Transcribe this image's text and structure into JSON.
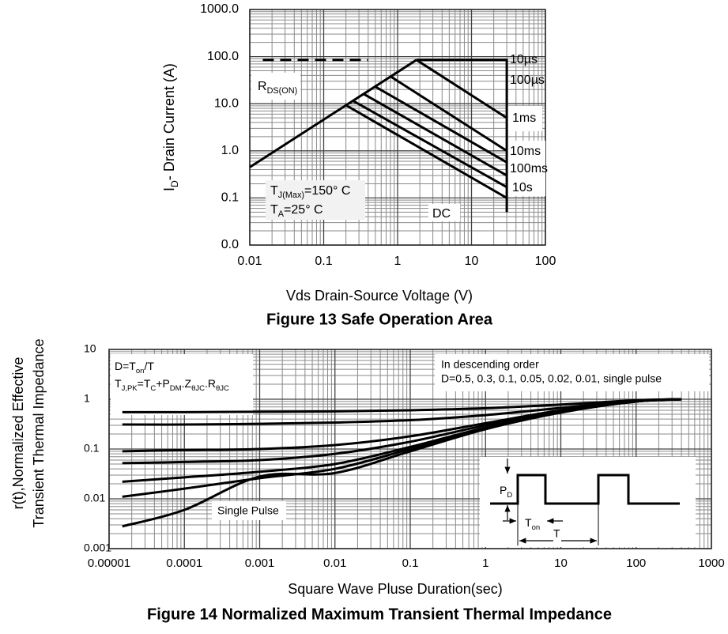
{
  "chart_data": [
    {
      "type": "line",
      "xscale": "log",
      "yscale": "log",
      "grid": true,
      "minor_grid": true,
      "title": "Figure 13 Safe Operation Area",
      "xlabel": "Vds Drain-Source Voltage (V)",
      "ylabel": [
        "I",
        "D",
        "- Drain Current (A)"
      ],
      "xlim": [
        0.01,
        100
      ],
      "ylim": [
        0.01,
        1000
      ],
      "xticks": [
        0.01,
        0.1,
        1,
        10,
        100
      ],
      "yticks": [
        {
          "value": 1000,
          "label": "1000.0"
        },
        {
          "value": 100,
          "label": "100.0"
        },
        {
          "value": 10,
          "label": "10.0"
        },
        {
          "value": 1,
          "label": "1.0"
        },
        0.1,
        {
          "value": 0.01,
          "label": "0.0"
        }
      ],
      "series": [
        {
          "color": "#000000",
          "x": [
            0.01,
            1.8
          ],
          "values": [
            0.45,
            85
          ]
        },
        {
          "color": "#000000",
          "dashed": true,
          "x": [
            0.015,
            0.4
          ],
          "values": [
            85,
            85
          ]
        },
        {
          "name": "10µs",
          "color": "#000000",
          "x": [
            1.8,
            30,
            30
          ],
          "values": [
            85,
            85,
            0.05
          ]
        },
        {
          "name": "100µs",
          "color": "#000000",
          "x": [
            1.8,
            30
          ],
          "values": [
            85,
            5
          ]
        },
        {
          "name": "1ms",
          "color": "#000000",
          "x": [
            0.8,
            30
          ],
          "values": [
            38,
            1.0
          ]
        },
        {
          "name": "10ms",
          "color": "#000000",
          "x": [
            0.5,
            30
          ],
          "values": [
            23,
            0.57
          ]
        },
        {
          "name": "100ms",
          "color": "#000000",
          "x": [
            0.35,
            30
          ],
          "values": [
            16,
            0.3
          ]
        },
        {
          "name": "10s",
          "color": "#000000",
          "x": [
            0.25,
            30
          ],
          "values": [
            11.5,
            0.17
          ]
        },
        {
          "name": "DC",
          "color": "#000000",
          "x": [
            0.2,
            30
          ],
          "values": [
            9.3,
            0.1
          ]
        }
      ],
      "annotations": [
        [
          "R",
          "DS(ON)"
        ],
        [
          "T",
          "J(Max)",
          "=150° C"
        ],
        [
          "T",
          "A",
          "=25° C"
        ]
      ]
    },
    {
      "type": "line",
      "xscale": "log",
      "yscale": "log",
      "grid": true,
      "minor_grid": true,
      "smooth": true,
      "title": "Figure 14 Normalized Maximum Transient Thermal Impedance",
      "xlabel": "Square Wave Pluse Duration(sec)",
      "ylabel_lines": [
        "r(t),Normalized Effective",
        "Transient Thermal Impedance"
      ],
      "xlim": [
        1e-05,
        1000
      ],
      "ylim": [
        0.001,
        10
      ],
      "xticks": [
        1e-05,
        0.0001,
        0.001,
        0.01,
        0.1,
        1,
        10,
        100,
        1000
      ],
      "yticks": [
        10,
        1,
        0.1,
        0.01,
        0.001
      ],
      "x": [
        1.5e-05,
        0.0001,
        0.001,
        0.01,
        0.1,
        1,
        10,
        100,
        400
      ],
      "series": [
        {
          "color": "#000000",
          "values": [
            0.55,
            0.55,
            0.56,
            0.57,
            0.6,
            0.66,
            0.78,
            0.95,
            1.0
          ]
        },
        {
          "color": "#000000",
          "values": [
            0.31,
            0.31,
            0.32,
            0.34,
            0.38,
            0.48,
            0.67,
            0.93,
            1.0
          ]
        },
        {
          "color": "#000000",
          "values": [
            0.09,
            0.095,
            0.1,
            0.12,
            0.18,
            0.33,
            0.6,
            0.9,
            1.0
          ]
        },
        {
          "color": "#000000",
          "values": [
            0.052,
            0.055,
            0.06,
            0.08,
            0.14,
            0.3,
            0.57,
            0.9,
            1.0
          ]
        },
        {
          "color": "#000000",
          "values": [
            0.022,
            0.027,
            0.035,
            0.05,
            0.11,
            0.27,
            0.55,
            0.9,
            1.0
          ]
        },
        {
          "color": "#000000",
          "values": [
            0.011,
            0.016,
            0.026,
            0.04,
            0.1,
            0.26,
            0.55,
            0.9,
            1.0
          ]
        },
        {
          "color": "#000000",
          "values": [
            0.0028,
            0.006,
            0.028,
            0.033,
            0.09,
            0.25,
            0.54,
            0.9,
            1.0
          ]
        }
      ],
      "annotations": [
        [
          "D=T",
          "on",
          "/T"
        ],
        [
          "T",
          "J,PK",
          "=T",
          "C",
          "+P",
          "DM",
          ".Z",
          "θJC",
          ".R",
          "θJC"
        ],
        "In descending order",
        "D=0.5, 0.3, 0.1, 0.05, 0.02, 0.01, single pulse",
        "Single Pulse"
      ],
      "inset_labels": [
        [
          "P",
          "D"
        ],
        [
          "T",
          "on"
        ],
        "T"
      ]
    }
  ]
}
